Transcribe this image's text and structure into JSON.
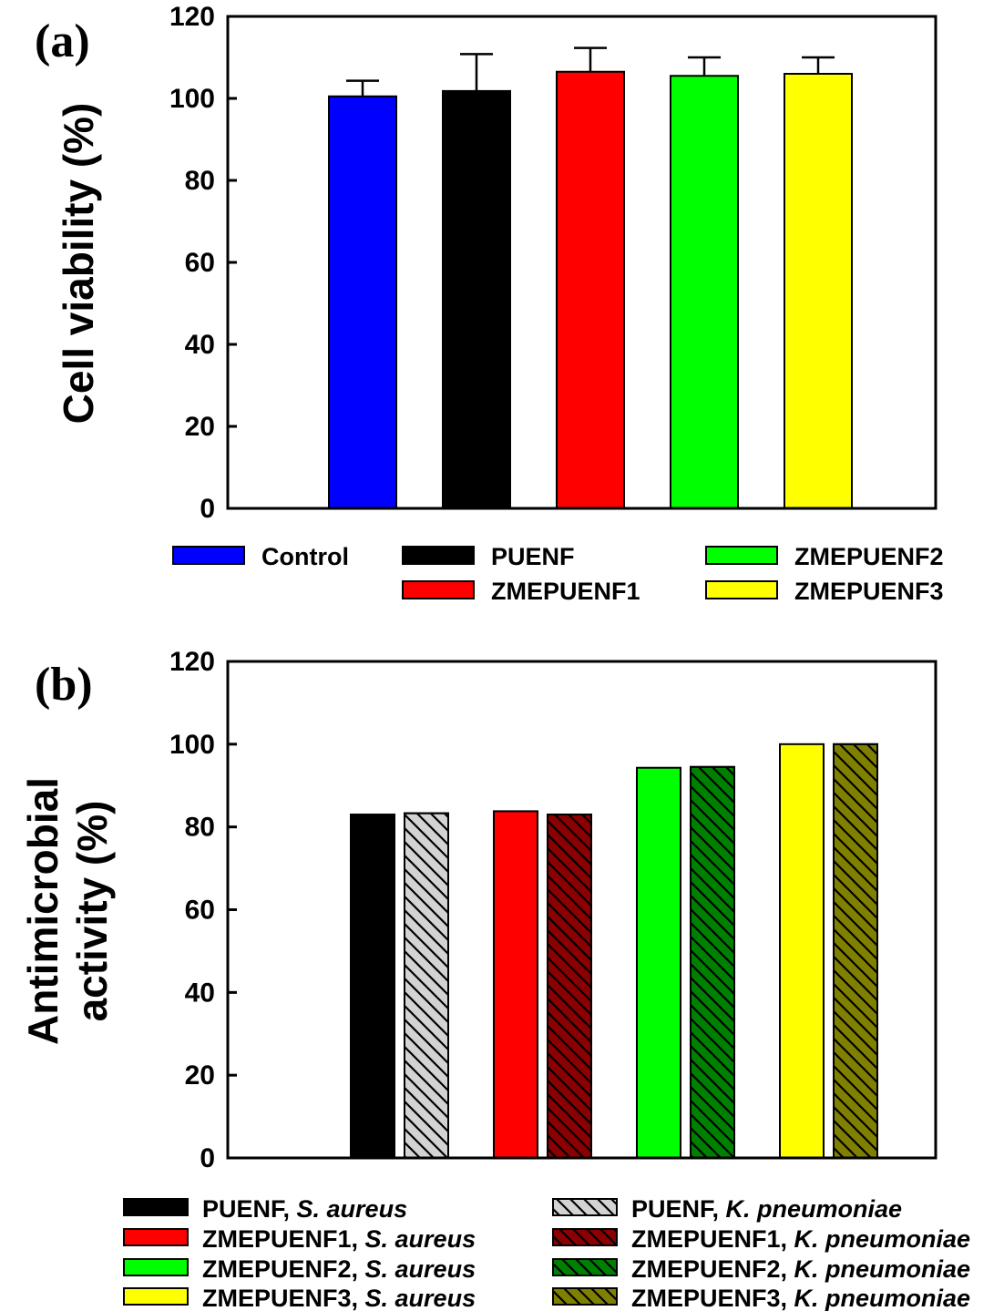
{
  "chart_data": [
    {
      "type": "bar",
      "panel_label": "(a)",
      "ylabel": "Cell viability (%)",
      "ylim": [
        0,
        120
      ],
      "yticks": [
        "0",
        "20",
        "40",
        "60",
        "80",
        "100",
        "120"
      ],
      "categories": [
        "Control",
        "PUENF",
        "ZMEPUENF1",
        "ZMEPUENF2",
        "ZMEPUENF3"
      ],
      "values": [
        100.5,
        101.8,
        106.5,
        105.5,
        106.0
      ],
      "errors": [
        3.8,
        9.0,
        5.8,
        4.5,
        4.0
      ],
      "colors": [
        "#0000ff",
        "#000000",
        "#ff0000",
        "#00ff00",
        "#ffff00"
      ],
      "legend": [
        {
          "label": "Control",
          "color": "#0000ff"
        },
        {
          "label": "PUENF",
          "color": "#000000"
        },
        {
          "label": "ZMEPUENF2",
          "color": "#00ff00"
        },
        {
          "label": "ZMEPUENF1",
          "color": "#ff0000"
        },
        {
          "label": "ZMEPUENF3",
          "color": "#ffff00"
        }
      ],
      "legend_position": "bottom",
      "grid": false
    },
    {
      "type": "bar",
      "panel_label": "(b)",
      "ylabel_lines": [
        "Antimicrobial",
        "activity (%)"
      ],
      "ylim": [
        0,
        120
      ],
      "yticks": [
        "0",
        "20",
        "40",
        "60",
        "80",
        "100",
        "120"
      ],
      "groups": [
        "PUENF",
        "ZMEPUENF1",
        "ZMEPUENF2",
        "ZMEPUENF3"
      ],
      "series": [
        {
          "name": "S. aureus",
          "values": [
            83.0,
            83.8,
            94.3,
            100.0
          ],
          "colors": [
            "#000000",
            "#ff0000",
            "#00ff00",
            "#ffff00"
          ],
          "pattern": "solid"
        },
        {
          "name": "K. pneumoniae",
          "values": [
            83.3,
            83.0,
            94.5,
            100.0
          ],
          "colors": [
            "#d3d3d3",
            "#8b0000",
            "#008000",
            "#808000"
          ],
          "pattern": "hatched"
        }
      ],
      "legend": [
        {
          "prefix": "PUENF, ",
          "species": "S. aureus",
          "color": "#000000",
          "hatched": false
        },
        {
          "prefix": "PUENF, ",
          "species": "K. pneumoniae",
          "color": "#d3d3d3",
          "hatched": true
        },
        {
          "prefix": "ZMEPUENF1, ",
          "species": "S. aureus",
          "color": "#ff0000",
          "hatched": false
        },
        {
          "prefix": "ZMEPUENF1, ",
          "species": "K. pneumoniae",
          "color": "#8b0000",
          "hatched": true
        },
        {
          "prefix": "ZMEPUENF2, ",
          "species": "S. aureus",
          "color": "#00ff00",
          "hatched": false
        },
        {
          "prefix": "ZMEPUENF2, ",
          "species": "K. pneumoniae",
          "color": "#008000",
          "hatched": true
        },
        {
          "prefix": "ZMEPUENF3, ",
          "species": "S. aureus",
          "color": "#ffff00",
          "hatched": false
        },
        {
          "prefix": "ZMEPUENF3, ",
          "species": "K. pneumoniae",
          "color": "#808000",
          "hatched": true
        }
      ],
      "legend_position": "bottom",
      "grid": false
    }
  ]
}
